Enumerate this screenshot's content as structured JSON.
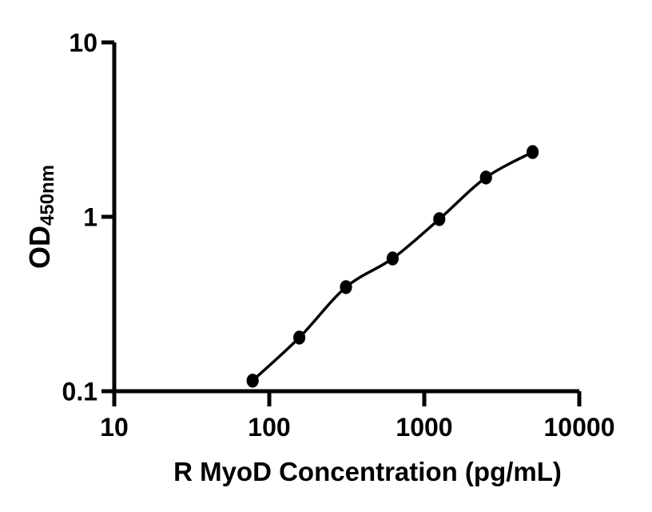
{
  "page": {
    "background_color": "#ffffff",
    "foreground_color": "#000000"
  },
  "chart_data": {
    "type": "scatter",
    "subtype": "elisa-standard-curve",
    "title": "",
    "xlabel": "R MyoD Concentration (pg/mL)",
    "ylabel": "OD",
    "ylabel_subscript": "450nm",
    "x_scale": "log10",
    "y_scale": "log10",
    "xlim": [
      10,
      10000
    ],
    "ylim": [
      0.1,
      10
    ],
    "x_ticks": [
      10,
      100,
      1000,
      10000
    ],
    "x_tick_labels": [
      "10",
      "100",
      "1000",
      "10000"
    ],
    "y_ticks": [
      0.1,
      1,
      10
    ],
    "y_tick_labels": [
      "0.1",
      "1",
      "10"
    ],
    "grid": false,
    "legend": null,
    "marker_color": "#000000",
    "line_color": "#000000",
    "axis_color": "#000000",
    "series": [
      {
        "name": "standard-curve",
        "points": [
          {
            "x": 78.125,
            "y": 0.115
          },
          {
            "x": 156.25,
            "y": 0.203
          },
          {
            "x": 312.5,
            "y": 0.395
          },
          {
            "x": 625,
            "y": 0.577
          },
          {
            "x": 1250,
            "y": 0.97
          },
          {
            "x": 2500,
            "y": 1.68
          },
          {
            "x": 5000,
            "y": 2.35
          }
        ]
      }
    ]
  }
}
